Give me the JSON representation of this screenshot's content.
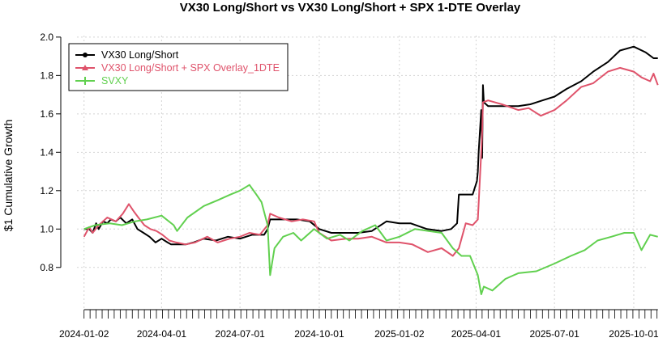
{
  "chart_data": {
    "type": "line",
    "title": "VX30 Long/Short vs VX30 Long/Short + SPX 1-DTE Overlay",
    "xlabel": "",
    "ylabel": "$1 Cumulative Growth",
    "ylim": [
      0.58,
      2.05
    ],
    "yticks": [
      0.8,
      1.0,
      1.2,
      1.4,
      1.6,
      1.8,
      2.0
    ],
    "ytick_labels": [
      "0.8",
      "1.0",
      "1.2",
      "1.4",
      "1.6",
      "1.8",
      "2.0"
    ],
    "xlim": [
      "2023-12-06",
      "2025-11-02"
    ],
    "xticks": [
      "2024-01-02",
      "2024-04-01",
      "2024-07-01",
      "2024-10-01",
      "2025-01-02",
      "2025-04-01",
      "2025-07-01",
      "2025-10-01"
    ],
    "grid": true,
    "legend_position": "top-left",
    "colors": {
      "vx30": "#000000",
      "overlay": "#DF536B",
      "svxy": "#61D04F",
      "grid": "#d3d3d3"
    },
    "series": [
      {
        "name": "VX30 Long/Short",
        "color": "#000000",
        "points": [
          [
            "2024-01-02",
            1.0
          ],
          [
            "2024-01-08",
            1.0
          ],
          [
            "2024-01-12",
            0.98
          ],
          [
            "2024-01-16",
            1.03
          ],
          [
            "2024-01-19",
            1.0
          ],
          [
            "2024-01-24",
            1.04
          ],
          [
            "2024-01-29",
            1.03
          ],
          [
            "2024-02-02",
            1.05
          ],
          [
            "2024-02-08",
            1.04
          ],
          [
            "2024-02-13",
            1.06
          ],
          [
            "2024-02-20",
            1.03
          ],
          [
            "2024-02-27",
            1.05
          ],
          [
            "2024-03-04",
            1.0
          ],
          [
            "2024-03-11",
            0.98
          ],
          [
            "2024-03-18",
            0.96
          ],
          [
            "2024-03-25",
            0.93
          ],
          [
            "2024-04-01",
            0.95
          ],
          [
            "2024-04-08",
            0.93
          ],
          [
            "2024-04-12",
            0.92
          ],
          [
            "2024-04-19",
            0.92
          ],
          [
            "2024-04-29",
            0.92
          ],
          [
            "2024-05-08",
            0.93
          ],
          [
            "2024-05-20",
            0.95
          ],
          [
            "2024-06-03",
            0.94
          ],
          [
            "2024-06-17",
            0.96
          ],
          [
            "2024-07-01",
            0.95
          ],
          [
            "2024-07-15",
            0.97
          ],
          [
            "2024-07-29",
            0.97
          ],
          [
            "2024-08-02",
            1.0
          ],
          [
            "2024-08-05",
            1.05
          ],
          [
            "2024-08-20",
            1.05
          ],
          [
            "2024-09-05",
            1.05
          ],
          [
            "2024-09-20",
            1.04
          ],
          [
            "2024-10-01",
            1.0
          ],
          [
            "2024-10-15",
            0.98
          ],
          [
            "2024-11-01",
            0.98
          ],
          [
            "2024-11-15",
            0.98
          ],
          [
            "2024-12-01",
            0.99
          ],
          [
            "2024-12-18",
            1.04
          ],
          [
            "2025-01-02",
            1.03
          ],
          [
            "2025-01-15",
            1.03
          ],
          [
            "2025-02-03",
            1.0
          ],
          [
            "2025-02-20",
            0.99
          ],
          [
            "2025-03-03",
            1.0
          ],
          [
            "2025-03-10",
            1.03
          ],
          [
            "2025-03-12",
            1.18
          ],
          [
            "2025-03-20",
            1.18
          ],
          [
            "2025-03-28",
            1.18
          ],
          [
            "2025-04-02",
            1.25
          ],
          [
            "2025-04-03",
            1.3
          ],
          [
            "2025-04-04",
            1.4
          ],
          [
            "2025-04-07",
            1.62
          ],
          [
            "2025-04-08",
            1.37
          ],
          [
            "2025-04-09",
            1.75
          ],
          [
            "2025-04-10",
            1.66
          ],
          [
            "2025-04-15",
            1.64
          ],
          [
            "2025-05-01",
            1.64
          ],
          [
            "2025-05-20",
            1.64
          ],
          [
            "2025-06-03",
            1.65
          ],
          [
            "2025-06-17",
            1.67
          ],
          [
            "2025-07-01",
            1.69
          ],
          [
            "2025-07-15",
            1.73
          ],
          [
            "2025-08-01",
            1.77
          ],
          [
            "2025-08-15",
            1.82
          ],
          [
            "2025-09-01",
            1.87
          ],
          [
            "2025-09-15",
            1.93
          ],
          [
            "2025-10-01",
            1.95
          ],
          [
            "2025-10-15",
            1.92
          ],
          [
            "2025-10-24",
            1.89
          ],
          [
            "2025-10-29",
            1.89
          ]
        ]
      },
      {
        "name": "VX30 Long/Short + SPX Overlay_1DTE",
        "color": "#DF536B",
        "points": [
          [
            "2024-01-02",
            0.96
          ],
          [
            "2024-01-08",
            1.01
          ],
          [
            "2024-01-12",
            0.98
          ],
          [
            "2024-01-19",
            1.02
          ],
          [
            "2024-01-29",
            1.06
          ],
          [
            "2024-02-08",
            1.04
          ],
          [
            "2024-02-16",
            1.08
          ],
          [
            "2024-02-23",
            1.13
          ],
          [
            "2024-02-29",
            1.09
          ],
          [
            "2024-03-05",
            1.06
          ],
          [
            "2024-03-12",
            1.02
          ],
          [
            "2024-03-19",
            1.0
          ],
          [
            "2024-03-26",
            0.99
          ],
          [
            "2024-04-02",
            0.97
          ],
          [
            "2024-04-10",
            0.94
          ],
          [
            "2024-04-18",
            0.93
          ],
          [
            "2024-04-29",
            0.92
          ],
          [
            "2024-05-10",
            0.93
          ],
          [
            "2024-05-24",
            0.96
          ],
          [
            "2024-06-05",
            0.93
          ],
          [
            "2024-06-19",
            0.95
          ],
          [
            "2024-07-01",
            0.96
          ],
          [
            "2024-07-12",
            0.98
          ],
          [
            "2024-07-24",
            0.97
          ],
          [
            "2024-08-02",
            1.02
          ],
          [
            "2024-08-05",
            1.08
          ],
          [
            "2024-08-15",
            1.06
          ],
          [
            "2024-08-30",
            1.04
          ],
          [
            "2024-09-12",
            1.05
          ],
          [
            "2024-09-25",
            1.04
          ],
          [
            "2024-10-01",
            0.98
          ],
          [
            "2024-10-15",
            0.94
          ],
          [
            "2024-11-01",
            0.95
          ],
          [
            "2024-11-15",
            0.95
          ],
          [
            "2024-12-01",
            0.96
          ],
          [
            "2024-12-18",
            0.93
          ],
          [
            "2025-01-02",
            0.93
          ],
          [
            "2025-01-17",
            0.92
          ],
          [
            "2025-02-04",
            0.88
          ],
          [
            "2025-02-20",
            0.9
          ],
          [
            "2025-03-05",
            0.86
          ],
          [
            "2025-03-12",
            0.9
          ],
          [
            "2025-03-20",
            1.03
          ],
          [
            "2025-03-28",
            1.02
          ],
          [
            "2025-04-03",
            1.05
          ],
          [
            "2025-04-07",
            1.4
          ],
          [
            "2025-04-08",
            1.5
          ],
          [
            "2025-04-09",
            1.66
          ],
          [
            "2025-04-15",
            1.67
          ],
          [
            "2025-05-01",
            1.65
          ],
          [
            "2025-05-20",
            1.62
          ],
          [
            "2025-06-01",
            1.63
          ],
          [
            "2025-06-15",
            1.59
          ],
          [
            "2025-07-01",
            1.62
          ],
          [
            "2025-07-15",
            1.67
          ],
          [
            "2025-08-01",
            1.74
          ],
          [
            "2025-08-15",
            1.76
          ],
          [
            "2025-09-01",
            1.82
          ],
          [
            "2025-09-15",
            1.84
          ],
          [
            "2025-10-01",
            1.82
          ],
          [
            "2025-10-10",
            1.79
          ],
          [
            "2025-10-20",
            1.77
          ],
          [
            "2025-10-24",
            1.81
          ],
          [
            "2025-10-29",
            1.75
          ]
        ]
      },
      {
        "name": "SVXY",
        "color": "#61D04F",
        "points": [
          [
            "2024-01-02",
            1.0
          ],
          [
            "2024-01-15",
            1.02
          ],
          [
            "2024-02-01",
            1.03
          ],
          [
            "2024-02-15",
            1.02
          ],
          [
            "2024-03-01",
            1.04
          ],
          [
            "2024-03-15",
            1.05
          ],
          [
            "2024-04-01",
            1.07
          ],
          [
            "2024-04-15",
            1.02
          ],
          [
            "2024-04-19",
            0.99
          ],
          [
            "2024-05-01",
            1.06
          ],
          [
            "2024-05-20",
            1.12
          ],
          [
            "2024-06-05",
            1.15
          ],
          [
            "2024-06-20",
            1.18
          ],
          [
            "2024-07-01",
            1.2
          ],
          [
            "2024-07-12",
            1.23
          ],
          [
            "2024-07-20",
            1.18
          ],
          [
            "2024-07-26",
            1.14
          ],
          [
            "2024-08-02",
            1.02
          ],
          [
            "2024-08-05",
            0.76
          ],
          [
            "2024-08-10",
            0.9
          ],
          [
            "2024-08-20",
            0.96
          ],
          [
            "2024-09-01",
            0.98
          ],
          [
            "2024-09-10",
            0.94
          ],
          [
            "2024-09-25",
            1.0
          ],
          [
            "2024-10-10",
            0.95
          ],
          [
            "2024-10-25",
            0.97
          ],
          [
            "2024-11-05",
            0.94
          ],
          [
            "2024-11-20",
            0.99
          ],
          [
            "2024-12-05",
            1.02
          ],
          [
            "2024-12-18",
            0.94
          ],
          [
            "2025-01-02",
            0.96
          ],
          [
            "2025-01-20",
            1.0
          ],
          [
            "2025-02-05",
            0.99
          ],
          [
            "2025-02-20",
            0.98
          ],
          [
            "2025-03-05",
            0.9
          ],
          [
            "2025-03-15",
            0.86
          ],
          [
            "2025-03-25",
            0.86
          ],
          [
            "2025-04-03",
            0.76
          ],
          [
            "2025-04-07",
            0.66
          ],
          [
            "2025-04-10",
            0.7
          ],
          [
            "2025-04-20",
            0.68
          ],
          [
            "2025-05-05",
            0.74
          ],
          [
            "2025-05-20",
            0.77
          ],
          [
            "2025-06-10",
            0.78
          ],
          [
            "2025-07-01",
            0.82
          ],
          [
            "2025-07-20",
            0.86
          ],
          [
            "2025-08-05",
            0.89
          ],
          [
            "2025-08-20",
            0.94
          ],
          [
            "2025-09-05",
            0.96
          ],
          [
            "2025-09-20",
            0.98
          ],
          [
            "2025-10-01",
            0.98
          ],
          [
            "2025-10-10",
            0.89
          ],
          [
            "2025-10-20",
            0.97
          ],
          [
            "2025-10-29",
            0.96
          ]
        ]
      }
    ]
  }
}
